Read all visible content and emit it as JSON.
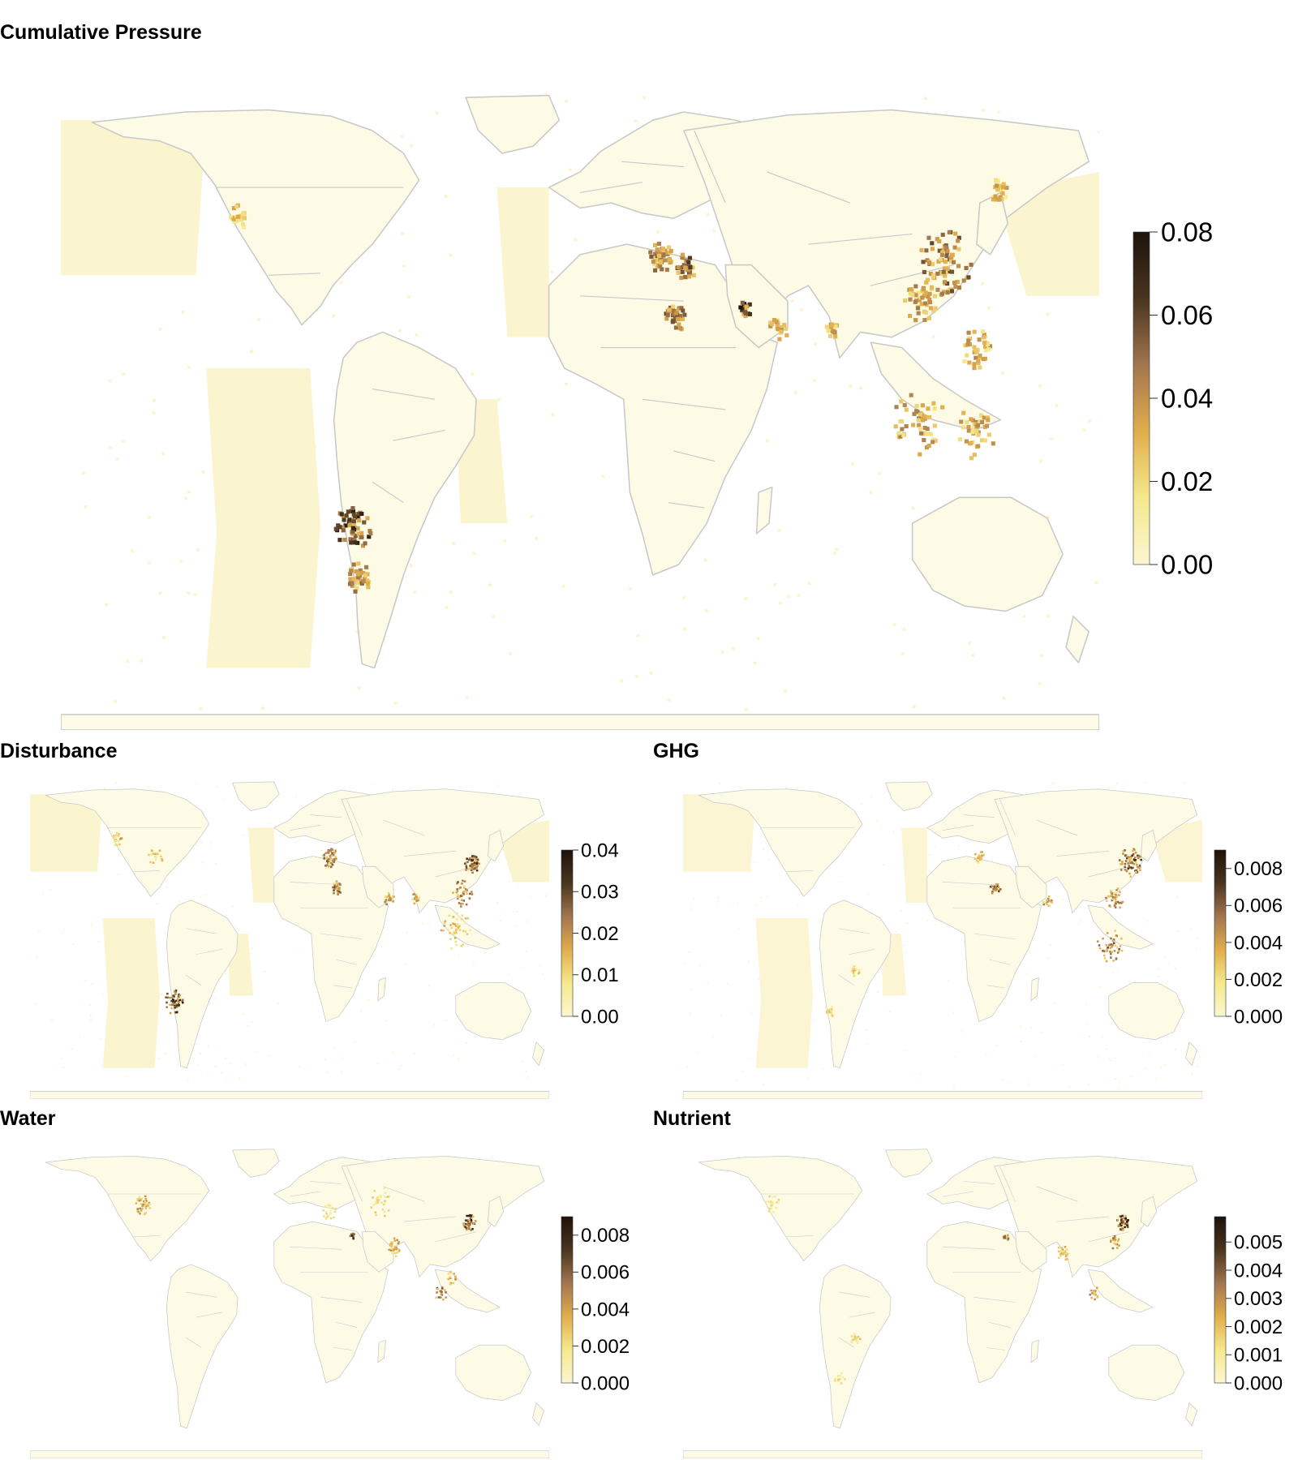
{
  "colors": {
    "ramp": [
      "#fbf6d2",
      "#f5e98c",
      "#e1ad4c",
      "#a2764f",
      "#4a3520",
      "#1d130b"
    ],
    "land_fill": "#ffffff",
    "border": "#c8c8c8",
    "ocean_pressure": "#fbf5cf"
  },
  "panels": [
    {
      "id": "cumulative",
      "title": "Cumulative Pressure",
      "legend": {
        "ticks": [
          "0.00",
          "0.02",
          "0.04",
          "0.06",
          "0.08"
        ],
        "min": 0,
        "max": 0.08
      }
    },
    {
      "id": "disturbance",
      "title": "Disturbance",
      "legend": {
        "ticks": [
          "0.00",
          "0.01",
          "0.02",
          "0.03",
          "0.04"
        ],
        "min": 0,
        "max": 0.04
      }
    },
    {
      "id": "ghg",
      "title": "GHG",
      "legend": {
        "ticks": [
          "0.000",
          "0.002",
          "0.004",
          "0.006",
          "0.008"
        ],
        "min": 0,
        "max": 0.009
      }
    },
    {
      "id": "water",
      "title": "Water",
      "legend": {
        "ticks": [
          "0.000",
          "0.002",
          "0.004",
          "0.006",
          "0.008"
        ],
        "min": 0,
        "max": 0.009
      }
    },
    {
      "id": "nutrient",
      "title": "Nutrient",
      "legend": {
        "ticks": [
          "0.000",
          "0.001",
          "0.002",
          "0.003",
          "0.004",
          "0.005"
        ],
        "min": 0,
        "max": 0.0059
      }
    }
  ]
}
